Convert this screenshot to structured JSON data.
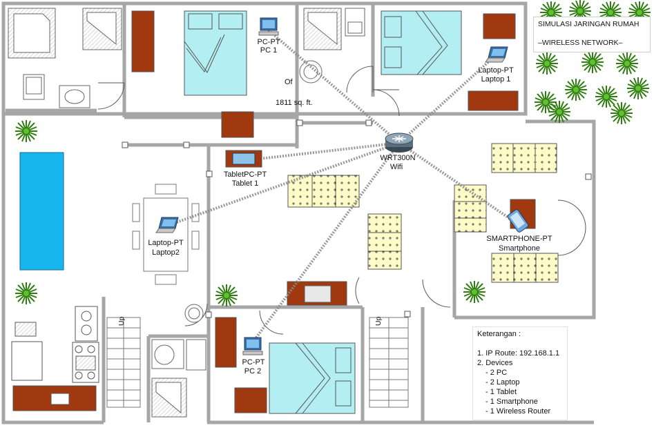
{
  "title": {
    "line1": "SIMULASI JARINGAN RUMAH",
    "line2": "–WIRELESS NETWORK–"
  },
  "area_label": "1811 sq. ft.",
  "ofi_label": "Of",
  "devices": {
    "router": {
      "type": "WRT300N",
      "name": "Wifi"
    },
    "pc1": {
      "type": "PC-PT",
      "name": "PC 1"
    },
    "pc2": {
      "type": "PC-PT",
      "name": "PC 2"
    },
    "laptop1": {
      "type": "Laptop-PT",
      "name": "Laptop 1"
    },
    "laptop2": {
      "type": "Laptop-PT",
      "name": "Laptop2"
    },
    "tablet": {
      "type": "TabletPC-PT",
      "name": "Tablet 1"
    },
    "smartphone": {
      "type": "SMARTPHONE-PT",
      "name": "Smartphone"
    }
  },
  "legend": {
    "heading": "Keterangan :",
    "ip_route": "1. IP Route: 192.168.1.1",
    "devices_heading": "2. Devices",
    "items": [
      "- 2 PC",
      "- 2 Laptop",
      "- 1 Tablet",
      "- 1 Smartphone",
      "- 1 Wireless Router"
    ]
  },
  "stairs_label": "Up",
  "colors": {
    "wall": "#a6a6a6",
    "floor": "#ffffff",
    "bed": "#b3eef2",
    "furniture_wood": "#a0390f",
    "sofa": "#fdfbc8",
    "pool": "#18b6ee",
    "plant": "#3f9f1a",
    "wireless_link": "#8c8c8c"
  }
}
